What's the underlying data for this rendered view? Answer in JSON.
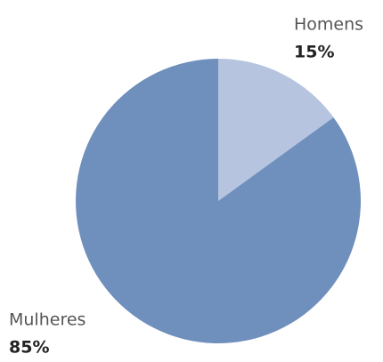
{
  "chart_data": {
    "type": "pie",
    "categories": [
      "Homens",
      "Mulheres"
    ],
    "values": [
      15,
      85
    ],
    "value_labels": [
      "15%",
      "85%"
    ],
    "colors": [
      "#b6c4e0",
      "#6f8fbd"
    ]
  }
}
